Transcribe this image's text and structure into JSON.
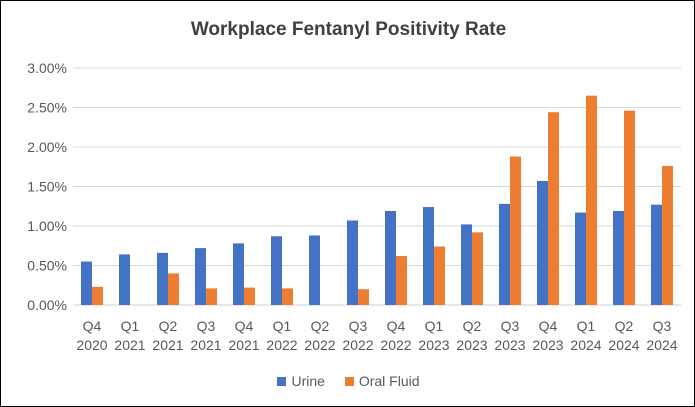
{
  "chart_data": {
    "type": "bar",
    "title": "Workplace Fentanyl Positivity Rate",
    "categories": [
      [
        "Q4",
        "2020"
      ],
      [
        "Q1",
        "2021"
      ],
      [
        "Q2",
        "2021"
      ],
      [
        "Q3",
        "2021"
      ],
      [
        "Q4",
        "2021"
      ],
      [
        "Q1",
        "2022"
      ],
      [
        "Q2",
        "2022"
      ],
      [
        "Q3",
        "2022"
      ],
      [
        "Q4",
        "2022"
      ],
      [
        "Q1",
        "2023"
      ],
      [
        "Q2",
        "2023"
      ],
      [
        "Q3",
        "2023"
      ],
      [
        "Q4",
        "2023"
      ],
      [
        "Q1",
        "2024"
      ],
      [
        "Q2",
        "2024"
      ],
      [
        "Q3",
        "2024"
      ]
    ],
    "series": [
      {
        "name": "Urine",
        "color": "#4472C4",
        "values": [
          0.55,
          0.64,
          0.66,
          0.72,
          0.78,
          0.87,
          0.88,
          1.07,
          1.19,
          1.24,
          1.02,
          1.28,
          1.57,
          1.17,
          1.19,
          1.27
        ]
      },
      {
        "name": "Oral Fluid",
        "color": "#ED7D31",
        "values": [
          0.23,
          null,
          0.4,
          0.21,
          0.22,
          0.21,
          null,
          0.2,
          0.62,
          0.74,
          0.92,
          1.88,
          2.44,
          2.65,
          2.46,
          1.76
        ]
      }
    ],
    "ylim": [
      0,
      3
    ],
    "yticks": [
      "0.00%",
      "0.50%",
      "1.00%",
      "1.50%",
      "2.00%",
      "2.50%",
      "3.00%"
    ],
    "ytick_values": [
      0,
      0.5,
      1,
      1.5,
      2,
      2.5,
      3
    ],
    "grid": true,
    "legend_position": "bottom",
    "xlabel": "",
    "ylabel": ""
  }
}
